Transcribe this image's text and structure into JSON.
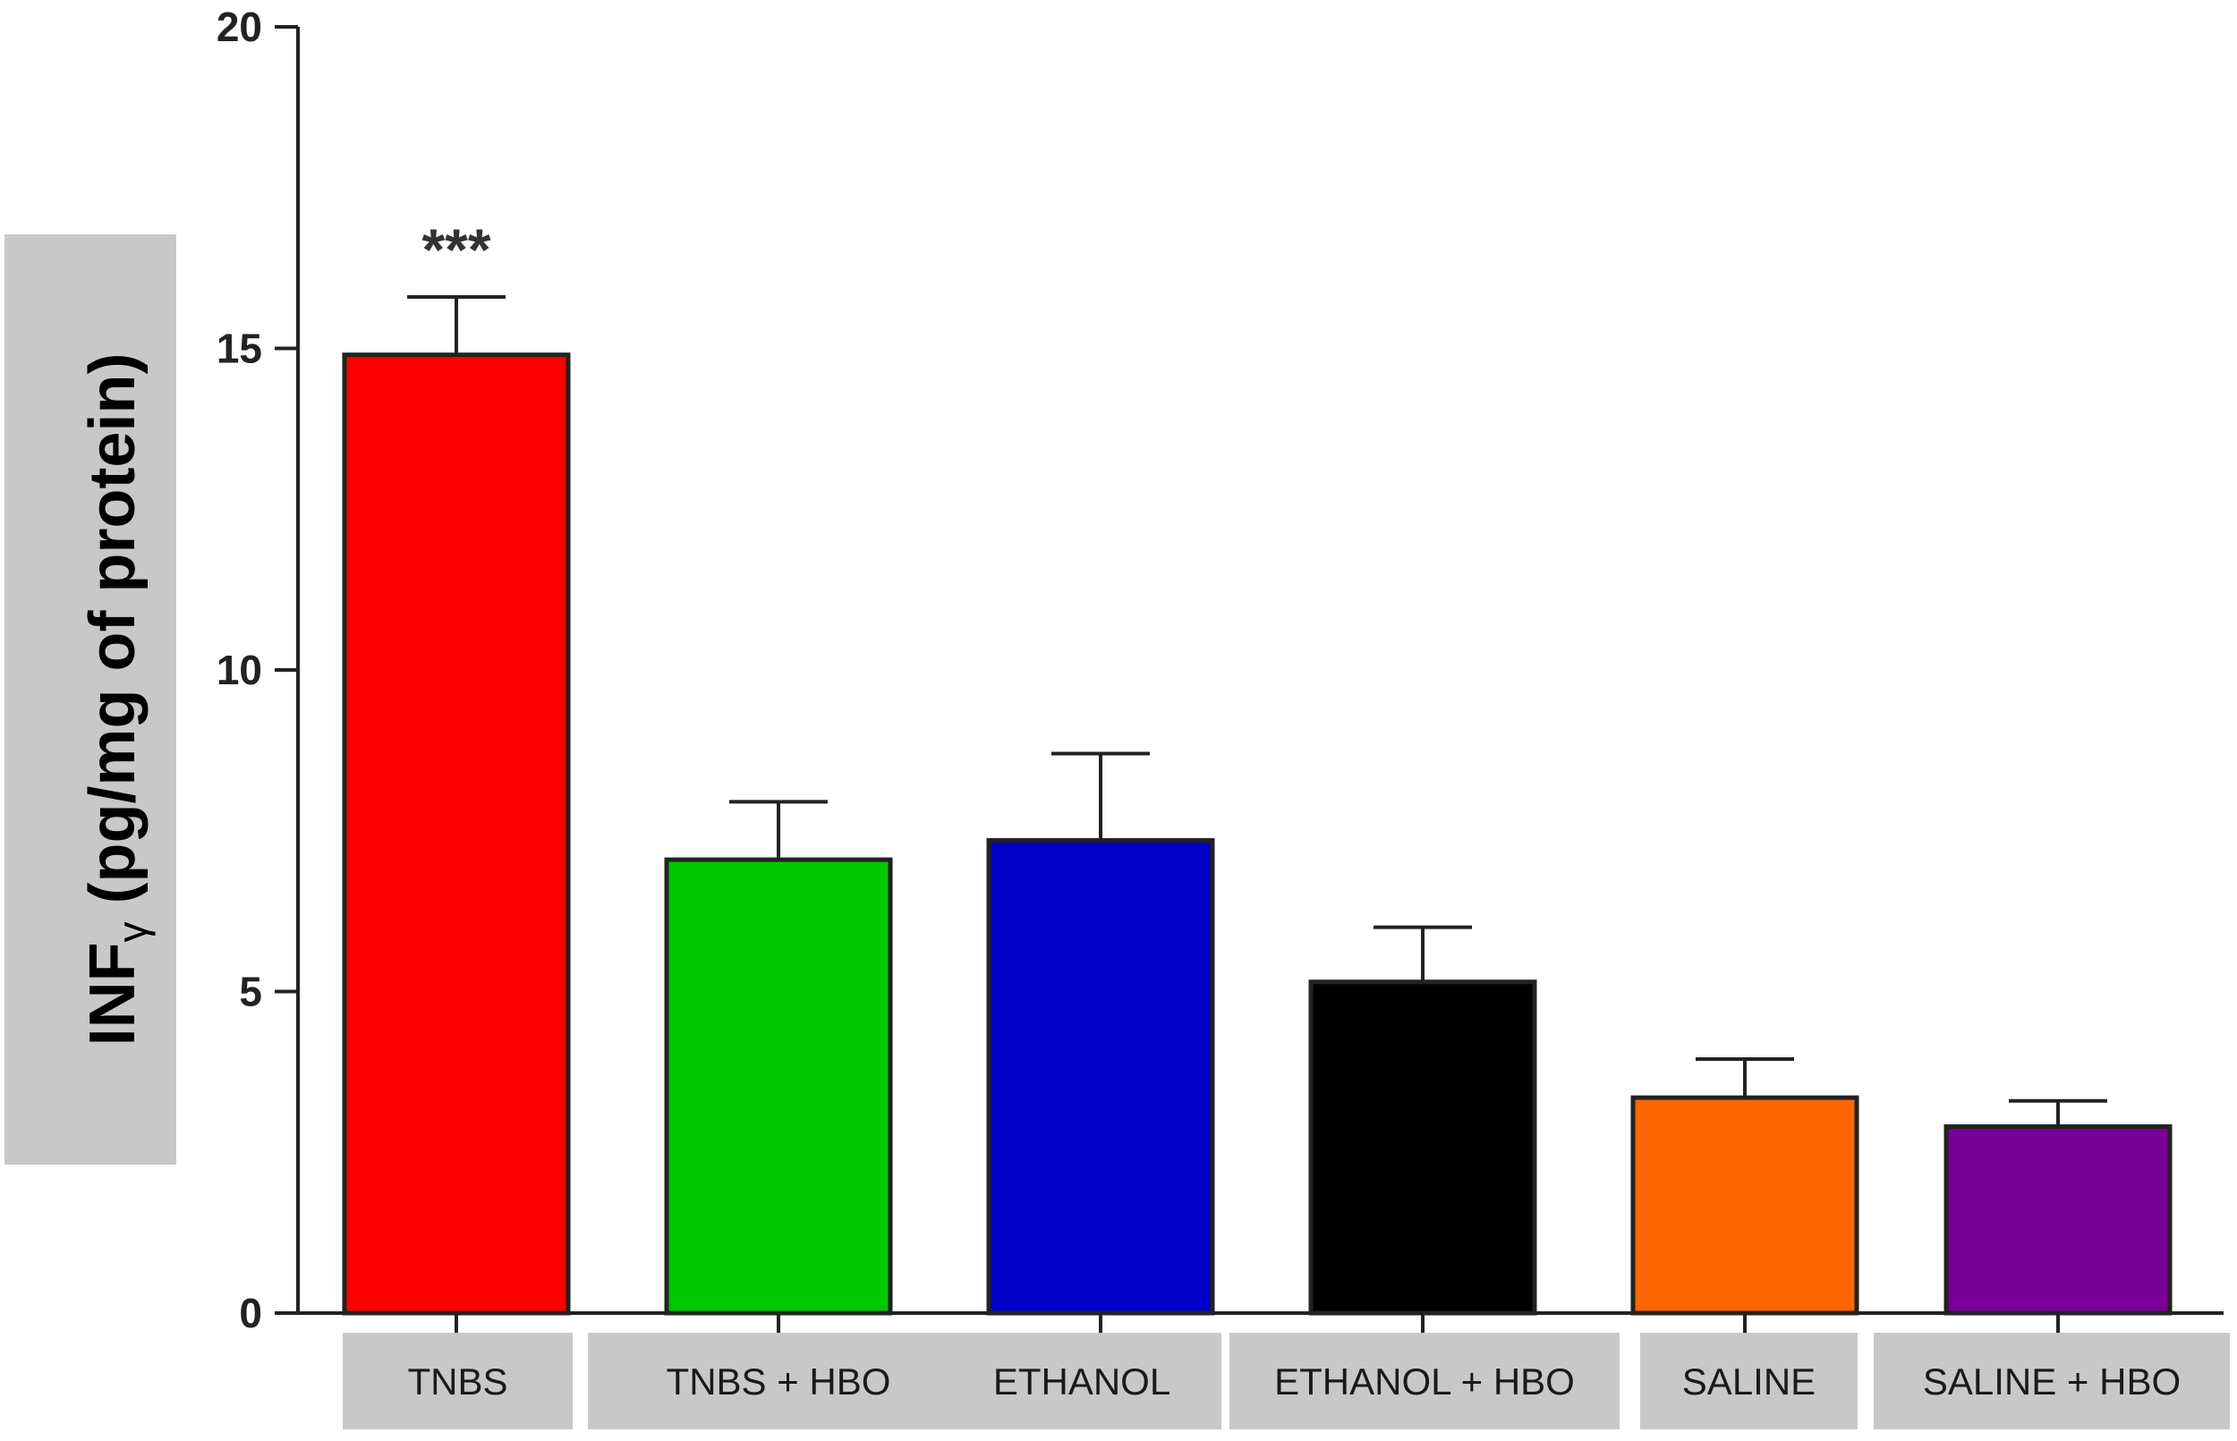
{
  "chart_data": {
    "type": "bar",
    "ylabel_main": "INF",
    "ylabel_sub": "γ",
    "ylabel_rest": " (pg/mg of protein)",
    "xlabel": "",
    "ylim": [
      0,
      20
    ],
    "yticks": [
      0,
      5,
      10,
      15,
      20
    ],
    "ytick_labels": [
      "0",
      "5",
      "10",
      "15",
      "20"
    ],
    "categories": [
      "TNBS",
      "TNBS + HBO",
      "ETHANOL",
      "ETHANOL  + HBO",
      "SALINE",
      "SALINE + HBO"
    ],
    "values": [
      14.9,
      7.05,
      7.35,
      5.15,
      3.35,
      2.9
    ],
    "errors": [
      0.9,
      0.9,
      1.35,
      0.85,
      0.6,
      0.4
    ],
    "colors": [
      "#ff0000",
      "#00c800",
      "#0000c8",
      "#000000",
      "#ff6600",
      "#780096"
    ],
    "label_box_color": "#c8c8c8",
    "annotations": [
      {
        "category": "TNBS",
        "text": "***"
      }
    ],
    "grid": false,
    "legend": "none"
  }
}
